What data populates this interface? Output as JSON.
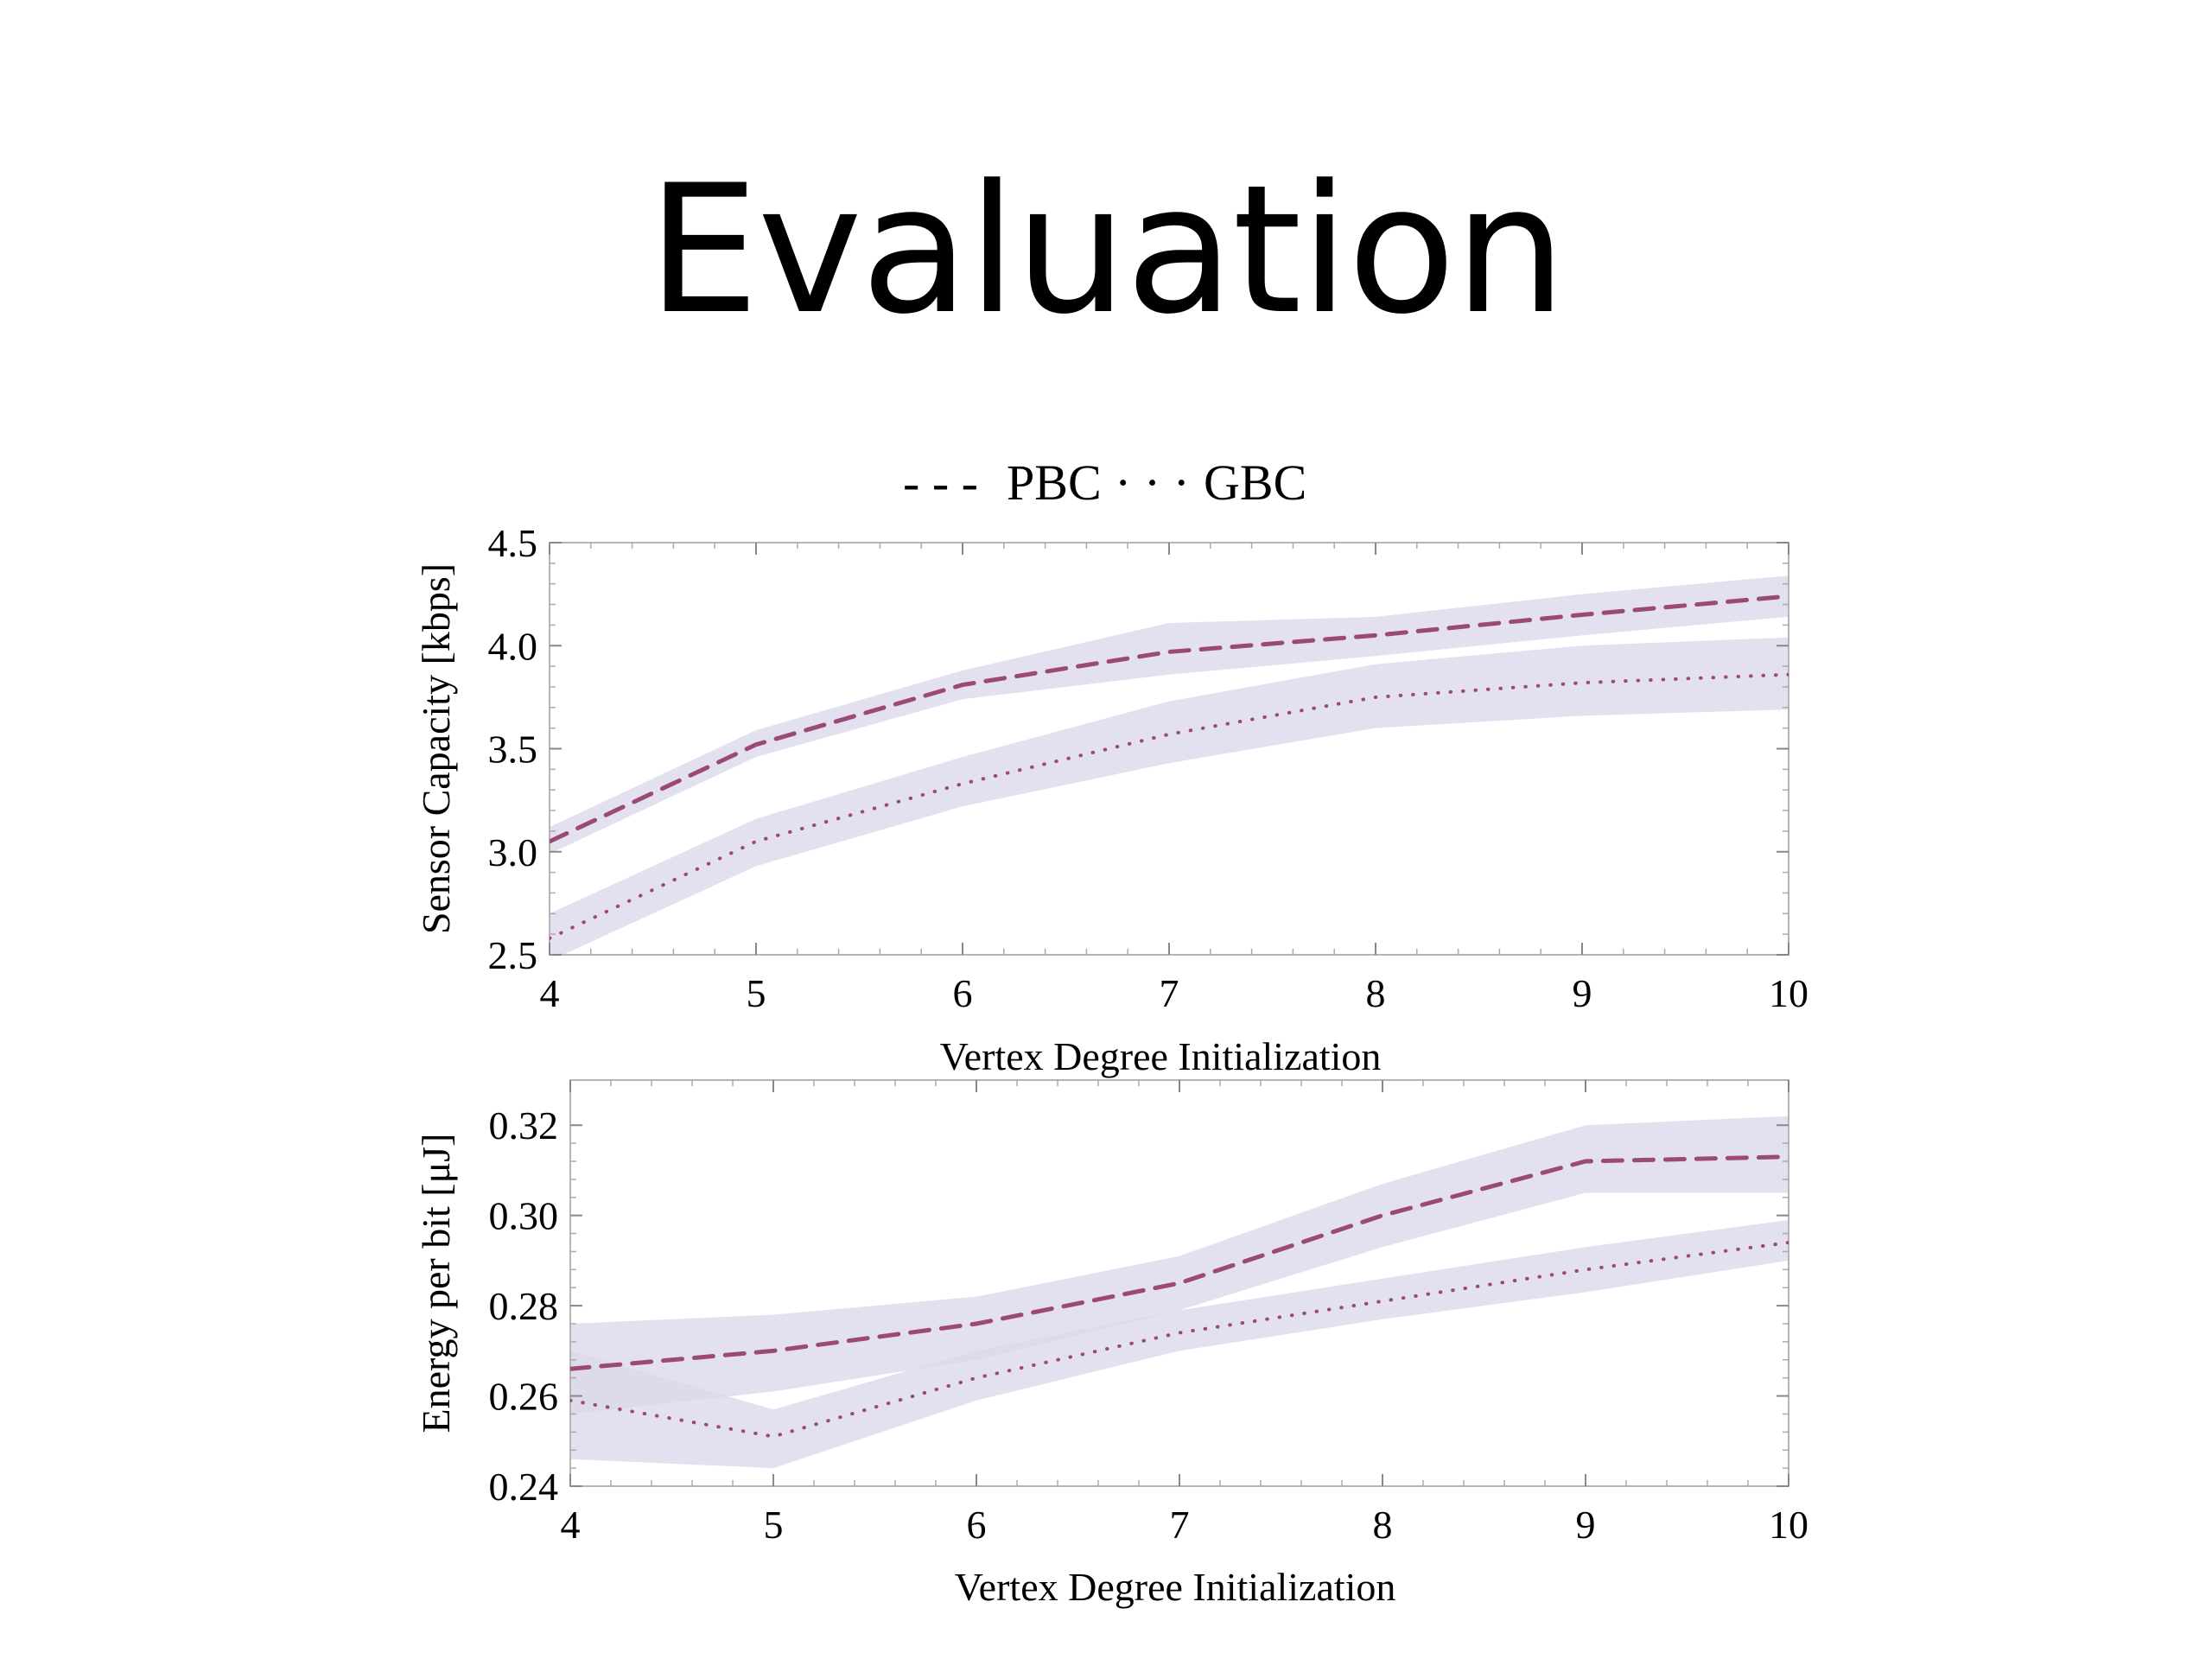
{
  "slide": {
    "title": "Evaluation"
  },
  "colors": {
    "line": "#9b4a78",
    "band": "#d9d7ea",
    "band_overlap": "#b7b3d8",
    "frame": "#b5b5b5",
    "text": "#000000"
  },
  "legend": {
    "items": [
      {
        "symbol": "- - -",
        "label": "PBC",
        "style": "dashed"
      },
      {
        "symbol": "· · ·",
        "label": "GBC",
        "style": "dotted"
      }
    ]
  },
  "chart_data": [
    {
      "type": "line",
      "x": [
        4,
        5,
        6,
        7,
        8,
        9,
        10
      ],
      "xlim": [
        4,
        10
      ],
      "ylim": [
        2.5,
        4.5
      ],
      "xticks": [
        "4",
        "5",
        "6",
        "7",
        "8",
        "9",
        "10"
      ],
      "yticks": [
        2.5,
        3.0,
        3.5,
        4.0,
        4.5
      ],
      "ytick_labels": [
        "2.5",
        "3.0",
        "3.5",
        "4.0",
        "4.5"
      ],
      "xlabel": "Vertex Degree Initialization",
      "ylabel": "Sensor Capacity [kbps]",
      "legend_position": "top-center",
      "series": [
        {
          "name": "PBC",
          "style": "dashed",
          "values": [
            3.05,
            3.52,
            3.81,
            3.97,
            4.05,
            4.15,
            4.24
          ],
          "lower": [
            2.99,
            3.46,
            3.74,
            3.86,
            3.95,
            4.05,
            4.14
          ],
          "upper": [
            3.12,
            3.59,
            3.88,
            4.11,
            4.14,
            4.25,
            4.34
          ]
        },
        {
          "name": "GBC",
          "style": "dotted",
          "values": [
            2.58,
            3.05,
            3.33,
            3.57,
            3.75,
            3.82,
            3.86
          ],
          "lower": [
            2.47,
            2.93,
            3.22,
            3.43,
            3.6,
            3.66,
            3.69
          ],
          "upper": [
            2.7,
            3.16,
            3.46,
            3.73,
            3.91,
            4.0,
            4.04
          ]
        }
      ]
    },
    {
      "type": "line",
      "x": [
        4,
        5,
        6,
        7,
        8,
        9,
        10
      ],
      "xlim": [
        4,
        10
      ],
      "ylim": [
        0.24,
        0.33
      ],
      "xticks": [
        "4",
        "5",
        "6",
        "7",
        "8",
        "9",
        "10"
      ],
      "yticks": [
        0.24,
        0.26,
        0.28,
        0.3,
        0.32
      ],
      "ytick_labels": [
        "0.24",
        "0.26",
        "0.28",
        "0.30",
        "0.32"
      ],
      "xlabel": "Vertex Degree Initialization",
      "ylabel": "Energy per bit [μJ]",
      "series": [
        {
          "name": "PBC",
          "style": "dashed",
          "values": [
            0.266,
            0.27,
            0.276,
            0.285,
            0.3,
            0.312,
            0.313
          ],
          "lower": [
            0.256,
            0.261,
            0.268,
            0.279,
            0.293,
            0.305,
            0.305
          ],
          "upper": [
            0.276,
            0.278,
            0.282,
            0.291,
            0.307,
            0.32,
            0.322
          ]
        },
        {
          "name": "GBC",
          "style": "dotted",
          "values": [
            0.259,
            0.251,
            0.264,
            0.274,
            0.281,
            0.288,
            0.294
          ],
          "lower": [
            0.246,
            0.244,
            0.259,
            0.27,
            0.277,
            0.283,
            0.29
          ],
          "upper": [
            0.27,
            0.257,
            0.27,
            0.279,
            0.286,
            0.293,
            0.299
          ]
        }
      ]
    }
  ]
}
